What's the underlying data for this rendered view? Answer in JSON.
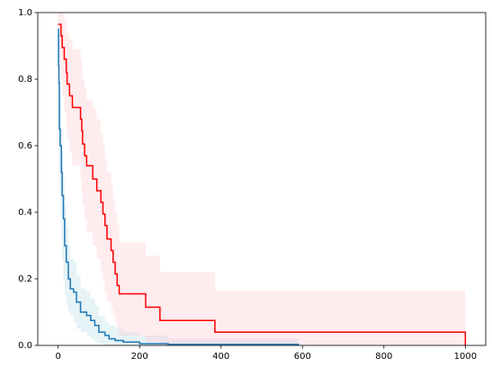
{
  "chart_data": {
    "type": "step",
    "xlim": [
      -50,
      1050
    ],
    "xticks": [
      0,
      200,
      400,
      600,
      800,
      1000
    ],
    "ylim": [
      0,
      1
    ],
    "yticks": [
      {
        "value": 0,
        "label": "0.0"
      },
      0.2,
      0.4,
      0.6,
      0.8,
      {
        "value": 1,
        "label": "1.0"
      }
    ],
    "series": [
      {
        "color": "#1f77b4",
        "band_color": "#add8e6",
        "x": [
          0,
          1,
          2,
          3,
          5,
          8,
          10,
          13,
          16,
          20,
          25,
          30,
          38,
          45,
          55,
          70,
          80,
          90,
          100,
          115,
          125,
          140,
          160,
          200,
          270,
          590
        ],
        "values": [
          0.95,
          0.84,
          0.79,
          0.65,
          0.6,
          0.52,
          0.45,
          0.38,
          0.3,
          0.25,
          0.2,
          0.17,
          0.16,
          0.13,
          0.1,
          0.09,
          0.075,
          0.06,
          0.04,
          0.03,
          0.02,
          0.015,
          0.01,
          0.005,
          0.003,
          0
        ],
        "upper": [
          1,
          0.95,
          0.9,
          0.78,
          0.73,
          0.65,
          0.58,
          0.5,
          0.42,
          0.36,
          0.3,
          0.26,
          0.25,
          0.21,
          0.17,
          0.16,
          0.14,
          0.12,
          0.09,
          0.07,
          0.06,
          0.05,
          0.04,
          0.03,
          0.02,
          0.02
        ],
        "lower": [
          0.88,
          0.72,
          0.66,
          0.52,
          0.47,
          0.39,
          0.32,
          0.26,
          0.19,
          0.15,
          0.12,
          0.1,
          0.09,
          0.07,
          0.05,
          0.04,
          0.03,
          0.02,
          0.01,
          0.005,
          0,
          0,
          0,
          0,
          0,
          0
        ]
      },
      {
        "color": "#ff0000",
        "band_color": "#ffc0cb",
        "x": [
          0,
          7,
          10,
          15,
          20,
          22,
          28,
          35,
          55,
          58,
          60,
          65,
          70,
          85,
          95,
          105,
          110,
          115,
          120,
          130,
          135,
          140,
          145,
          150,
          215,
          250,
          385,
          1000
        ],
        "values": [
          0.965,
          0.93,
          0.895,
          0.86,
          0.82,
          0.785,
          0.75,
          0.715,
          0.68,
          0.645,
          0.605,
          0.57,
          0.54,
          0.5,
          0.465,
          0.43,
          0.395,
          0.36,
          0.32,
          0.285,
          0.25,
          0.215,
          0.18,
          0.155,
          0.115,
          0.075,
          0.04,
          0
        ],
        "upper": [
          1,
          1,
          1,
          0.98,
          0.96,
          0.94,
          0.92,
          0.89,
          0.86,
          0.83,
          0.8,
          0.77,
          0.74,
          0.71,
          0.68,
          0.64,
          0.6,
          0.56,
          0.52,
          0.48,
          0.44,
          0.4,
          0.36,
          0.31,
          0.27,
          0.22,
          0.165,
          0.165
        ],
        "lower": [
          0.9,
          0.85,
          0.8,
          0.75,
          0.7,
          0.66,
          0.62,
          0.58,
          0.54,
          0.5,
          0.46,
          0.42,
          0.38,
          0.34,
          0.3,
          0.26,
          0.22,
          0.19,
          0.16,
          0.13,
          0.11,
          0.09,
          0.07,
          0.05,
          0.03,
          0.01,
          0,
          0
        ]
      }
    ]
  }
}
